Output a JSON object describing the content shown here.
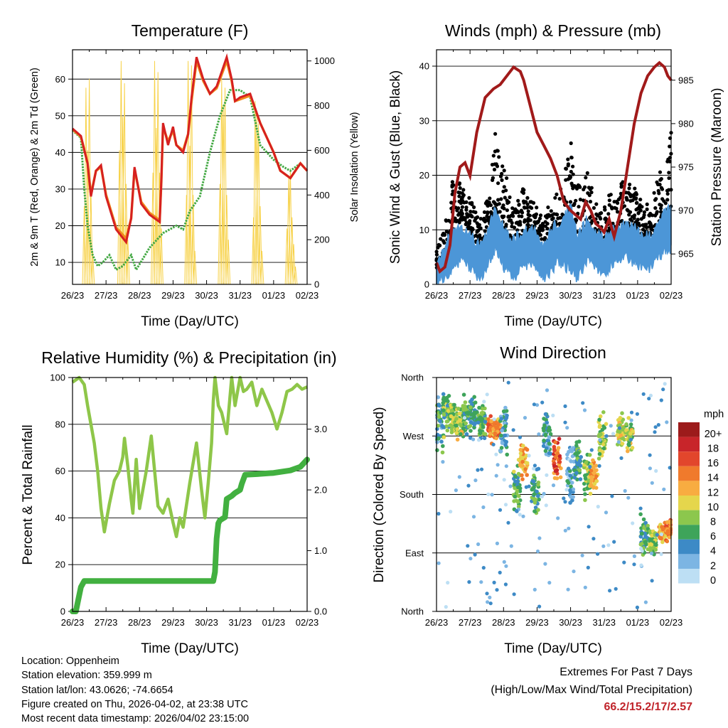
{
  "x_ticks": [
    "26/23",
    "27/23",
    "28/23",
    "29/23",
    "30/23",
    "31/23",
    "01/23",
    "02/23"
  ],
  "x_axis_label": "Time (Day/UTC)",
  "colors": {
    "temp_red": "#d62020",
    "temp_orange": "#f08a1c",
    "dewpoint_green": "#43a843",
    "solar_yellow": "#f7d24a",
    "gust_black": "#000000",
    "wind_blue": "#4c96d7",
    "pressure_maroon": "#a11a1a",
    "rh_lightgreen": "#8ec649",
    "rain_green": "#42b040"
  },
  "chart_data": [
    {
      "type": "line",
      "id": "temperature",
      "title": "Temperature (F)",
      "xlabel": "Time (Day/UTC)",
      "ylabel": "2m & 9m T (Red, Orange) & 2m Td (Green)",
      "ylabel_right": "Solar Insolation (Yellow)",
      "x_range": [
        0,
        7
      ],
      "ylim": [
        4,
        68
      ],
      "ylim_right": [
        0,
        1050
      ],
      "y_ticks": [
        10,
        20,
        30,
        40,
        50,
        60
      ],
      "y_ticks_right": [
        0,
        200,
        400,
        600,
        800,
        1000
      ],
      "series": [
        {
          "name": "2m T",
          "color": "red",
          "x": [
            0,
            0.25,
            0.45,
            0.55,
            0.7,
            0.85,
            1.0,
            1.3,
            1.6,
            1.75,
            1.85,
            2.05,
            2.3,
            2.6,
            2.65,
            2.7,
            2.85,
            3.0,
            3.1,
            3.3,
            3.45,
            3.55,
            3.7,
            3.9,
            4.1,
            4.3,
            4.6,
            4.75,
            4.85,
            5.0,
            5.3,
            5.6,
            6.0,
            6.2,
            6.5,
            6.8,
            7.0
          ],
          "y": [
            46.5,
            44.5,
            37,
            28,
            35,
            36.5,
            28,
            19,
            15.5,
            22,
            36,
            26,
            23,
            21,
            32,
            48,
            42,
            47,
            42,
            40,
            45,
            55,
            66,
            60,
            56,
            58,
            66,
            60,
            54,
            55,
            56,
            48,
            40,
            35,
            33,
            37,
            35
          ]
        },
        {
          "name": "9m T",
          "color": "orange",
          "x": [
            0,
            0.25,
            0.45,
            0.55,
            0.7,
            0.85,
            1.0,
            1.3,
            1.6,
            1.75,
            1.85,
            2.05,
            2.3,
            2.6,
            2.65,
            2.7,
            2.85,
            3.0,
            3.1,
            3.3,
            3.45,
            3.55,
            3.7,
            3.9,
            4.1,
            4.3,
            4.6,
            4.75,
            4.85,
            5.0,
            5.3,
            5.6,
            6.0,
            6.2,
            6.5,
            6.8,
            7.0
          ],
          "y": [
            46.3,
            44.3,
            37,
            28.5,
            35,
            36,
            28.5,
            19.5,
            16.5,
            22,
            35.5,
            26.5,
            23.5,
            21.5,
            32,
            47,
            43,
            46,
            42,
            40.5,
            45,
            54,
            65,
            59.5,
            56,
            57.5,
            65,
            59.5,
            54,
            54.5,
            55.5,
            48,
            40,
            35,
            33,
            37,
            35
          ]
        },
        {
          "name": "2m Td",
          "color": "dewpoint",
          "x": [
            0,
            0.25,
            0.35,
            0.45,
            0.6,
            0.75,
            0.9,
            1.1,
            1.3,
            1.5,
            1.75,
            1.9,
            2.1,
            2.3,
            2.5,
            2.7,
            2.9,
            3.1,
            3.3,
            3.5,
            3.8,
            4.1,
            4.4,
            4.7,
            5.0,
            5.3,
            5.6,
            6.0,
            6.3,
            6.5,
            6.8,
            7.0
          ],
          "y": [
            46,
            44,
            30,
            20,
            12,
            9,
            10,
            12,
            8,
            9,
            12,
            8,
            11,
            14,
            16,
            18,
            19,
            20,
            19,
            24,
            28,
            40,
            50,
            57,
            57,
            55,
            42,
            38,
            36,
            35,
            37,
            35
          ]
        }
      ],
      "solar": {
        "name": "Solar Insolation",
        "x": [
          0.35,
          0.4,
          0.45,
          0.5,
          0.55,
          0.6,
          1.4,
          1.45,
          1.5,
          1.55,
          1.6,
          1.65,
          2.4,
          2.45,
          2.5,
          2.55,
          2.6,
          2.65,
          3.4,
          3.45,
          3.5,
          3.55,
          3.6,
          3.65,
          4.4,
          4.45,
          4.5,
          4.55,
          4.6,
          4.65,
          5.4,
          5.45,
          5.5,
          5.55,
          5.6,
          5.65,
          6.4,
          6.45,
          6.5,
          6.55,
          6.6,
          6.65
        ],
        "values": [
          350,
          880,
          600,
          920,
          420,
          150,
          600,
          1000,
          750,
          900,
          450,
          200,
          500,
          1000,
          700,
          950,
          500,
          250,
          400,
          1000,
          620,
          980,
          400,
          150,
          450,
          920,
          800,
          880,
          400,
          200,
          300,
          820,
          760,
          720,
          350,
          150,
          250,
          480,
          520,
          300,
          180,
          80
        ]
      }
    },
    {
      "type": "scatter",
      "id": "winds",
      "title": "Winds (mph) & Pressure (mb)",
      "xlabel": "Time (Day/UTC)",
      "ylabel": "Sonic Wind & Gust (Blue, Black)",
      "ylabel_right": "Station Pressure (Maroon)",
      "x_range": [
        0,
        7
      ],
      "ylim": [
        0,
        43
      ],
      "ylim_right": [
        961.5,
        988.5
      ],
      "y_ticks": [
        0,
        10,
        20,
        30,
        40
      ],
      "y_ticks_right": [
        965,
        970,
        975,
        980,
        985
      ],
      "gust_envelope": {
        "x": [
          0,
          0.2,
          0.5,
          0.8,
          1.0,
          1.3,
          1.6,
          1.75,
          2.0,
          2.3,
          2.6,
          2.9,
          3.2,
          3.5,
          3.7,
          4.0,
          4.2,
          4.5,
          4.8,
          5.0,
          5.3,
          5.6,
          5.9,
          6.1,
          6.4,
          6.6,
          6.8,
          7.0
        ],
        "low": [
          3,
          4,
          10,
          12,
          9,
          6,
          10,
          14,
          9,
          5,
          8,
          10,
          4,
          7,
          10,
          6,
          4,
          8,
          6,
          6,
          8,
          10,
          9,
          8,
          7,
          9,
          11,
          12
        ],
        "high": [
          7,
          10,
          20,
          18,
          16,
          12,
          19,
          28,
          22,
          14,
          18,
          15,
          12,
          17,
          18,
          27,
          18,
          21,
          14,
          16,
          17,
          20,
          18,
          16,
          14,
          20,
          22,
          28
        ]
      },
      "wind_envelope": {
        "x": [
          0,
          0.2,
          0.5,
          0.8,
          1.0,
          1.3,
          1.6,
          1.75,
          2.0,
          2.3,
          2.6,
          2.9,
          3.2,
          3.5,
          3.7,
          4.0,
          4.2,
          4.5,
          4.8,
          5.0,
          5.3,
          5.6,
          5.9,
          6.1,
          6.4,
          6.6,
          6.8,
          7.0
        ],
        "low": [
          0,
          0,
          2,
          4,
          2,
          0,
          3,
          5,
          2,
          0,
          2,
          3,
          0,
          2,
          3,
          1,
          0,
          3,
          2,
          1,
          3,
          4,
          3,
          2,
          2,
          4,
          5,
          5
        ],
        "high": [
          4,
          7,
          12,
          11,
          10,
          8,
          12,
          15,
          12,
          9,
          11,
          11,
          8,
          12,
          13,
          15,
          10,
          13,
          10,
          10,
          11,
          12,
          12,
          10,
          10,
          12,
          14,
          15
        ]
      },
      "pressure": {
        "name": "Station Pressure",
        "x": [
          0,
          0.1,
          0.25,
          0.4,
          0.55,
          0.7,
          0.85,
          1.0,
          1.2,
          1.45,
          1.7,
          1.9,
          2.1,
          2.3,
          2.5,
          2.6,
          2.8,
          3.0,
          3.2,
          3.4,
          3.6,
          3.8,
          4.0,
          4.15,
          4.3,
          4.45,
          4.6,
          4.75,
          4.9,
          5.0,
          5.15,
          5.3,
          5.5,
          5.7,
          5.9,
          6.1,
          6.3,
          6.5,
          6.65,
          6.8,
          6.9,
          7.0
        ],
        "values": [
          964,
          963,
          963.5,
          966,
          972,
          975,
          975.5,
          974,
          979,
          983,
          984,
          984.5,
          985.5,
          986.5,
          986,
          985,
          982,
          979,
          977.5,
          976,
          974,
          971,
          970,
          969.5,
          969,
          971,
          970,
          968.5,
          968,
          967.5,
          969,
          967,
          970,
          975,
          980,
          983.5,
          985.5,
          986.5,
          987,
          986.5,
          985.5,
          985
        ]
      }
    },
    {
      "type": "line",
      "id": "humidity",
      "title": "Relative Humidity (%) & Precipitation (in)",
      "xlabel": "Time (Day/UTC)",
      "ylabel": "Percent & Total Rainfall",
      "x_range": [
        0,
        7
      ],
      "ylim": [
        0,
        100
      ],
      "ylim_right": [
        0,
        3.85
      ],
      "y_ticks": [
        0,
        20,
        40,
        60,
        80,
        100
      ],
      "y_ticks_right": [
        "0.0",
        "1.0",
        "2.0",
        "3.0"
      ],
      "series": [
        {
          "name": "Relative Humidity",
          "x": [
            0,
            0.2,
            0.35,
            0.45,
            0.55,
            0.65,
            0.75,
            0.85,
            0.95,
            1.1,
            1.25,
            1.4,
            1.5,
            1.55,
            1.65,
            1.75,
            1.8,
            1.9,
            2.0,
            2.1,
            2.2,
            2.35,
            2.45,
            2.55,
            2.7,
            2.85,
            3.0,
            3.1,
            3.2,
            3.3,
            3.5,
            3.7,
            3.85,
            3.95,
            4.05,
            4.15,
            4.2,
            4.25,
            4.35,
            4.45,
            4.6,
            4.75,
            4.85,
            5.0,
            5.1,
            5.2,
            5.35,
            5.5,
            5.65,
            5.8,
            5.95,
            6.1,
            6.25,
            6.4,
            6.55,
            6.7,
            6.85,
            7.0
          ],
          "y": [
            98,
            100,
            97,
            88,
            80,
            72,
            60,
            44,
            34,
            46,
            56,
            60,
            66,
            74,
            62,
            48,
            42,
            65,
            44,
            52,
            60,
            75,
            60,
            45,
            42,
            48,
            38,
            32,
            40,
            36,
            55,
            72,
            52,
            40,
            55,
            72,
            90,
            100,
            88,
            85,
            76,
            100,
            88,
            100,
            94,
            95,
            98,
            88,
            95,
            90,
            85,
            78,
            85,
            94,
            95,
            97,
            95,
            96
          ]
        },
        {
          "name": "Total Precipitation",
          "x": [
            0,
            0.1,
            0.25,
            0.35,
            1.0,
            2.0,
            3.0,
            4.0,
            4.2,
            4.25,
            4.3,
            4.35,
            4.4,
            4.55,
            4.6,
            4.75,
            4.85,
            5.0,
            5.05,
            5.15,
            5.5,
            6.0,
            6.5,
            6.8,
            7.0
          ],
          "values": [
            0.0,
            0.0,
            0.4,
            0.5,
            0.5,
            0.5,
            0.5,
            0.5,
            0.5,
            0.65,
            1.2,
            1.45,
            1.5,
            1.55,
            1.85,
            1.9,
            1.95,
            2.0,
            2.1,
            2.25,
            2.26,
            2.28,
            2.32,
            2.38,
            2.5
          ]
        }
      ]
    },
    {
      "type": "scatter",
      "id": "wind_direction",
      "title": "Wind Direction",
      "xlabel": "Time (Day/UTC)",
      "ylabel": "Direction (Colored By Speed)",
      "x_range": [
        0,
        7
      ],
      "ylim": [
        0,
        360
      ],
      "y_ticks": [
        "North",
        "East",
        "South",
        "West",
        "North"
      ],
      "y_tick_values": [
        0,
        90,
        180,
        270,
        360
      ],
      "legend_title": "mph",
      "legend_labels": [
        "20+",
        "18",
        "16",
        "14",
        "12",
        "10",
        "8",
        "6",
        "4",
        "2",
        "0"
      ],
      "legend_colors": [
        "#9c1b1b",
        "#c8252a",
        "#e2462c",
        "#f07a2c",
        "#f8ac41",
        "#e5d64c",
        "#8cc74d",
        "#3ea45a",
        "#3d8ac6",
        "#7cb5e3",
        "#bddff4"
      ],
      "clusters": [
        {
          "x": 0.1,
          "dir": 290,
          "spread": 40,
          "speed": 5
        },
        {
          "x": 0.3,
          "dir": 305,
          "spread": 30,
          "speed": 7
        },
        {
          "x": 0.5,
          "dir": 300,
          "spread": 25,
          "speed": 8
        },
        {
          "x": 0.7,
          "dir": 290,
          "spread": 25,
          "speed": 9
        },
        {
          "x": 0.9,
          "dir": 305,
          "spread": 30,
          "speed": 6
        },
        {
          "x": 1.1,
          "dir": 300,
          "spread": 30,
          "speed": 5
        },
        {
          "x": 1.35,
          "dir": 295,
          "spread": 25,
          "speed": 6
        },
        {
          "x": 1.65,
          "dir": 282,
          "spread": 18,
          "speed": 14
        },
        {
          "x": 1.8,
          "dir": 280,
          "spread": 15,
          "speed": 13
        },
        {
          "x": 2.0,
          "dir": 275,
          "spread": 35,
          "speed": 4
        },
        {
          "x": 2.4,
          "dir": 190,
          "spread": 30,
          "speed": 7
        },
        {
          "x": 2.6,
          "dir": 235,
          "spread": 25,
          "speed": 12
        },
        {
          "x": 2.95,
          "dir": 185,
          "spread": 30,
          "speed": 6
        },
        {
          "x": 3.3,
          "dir": 270,
          "spread": 30,
          "speed": 4
        },
        {
          "x": 3.6,
          "dir": 235,
          "spread": 25,
          "speed": 15
        },
        {
          "x": 4.0,
          "dir": 200,
          "spread": 50,
          "speed": 3
        },
        {
          "x": 4.2,
          "dir": 230,
          "spread": 35,
          "speed": 6
        },
        {
          "x": 4.5,
          "dir": 210,
          "spread": 30,
          "speed": 8
        },
        {
          "x": 4.7,
          "dir": 210,
          "spread": 25,
          "speed": 12
        },
        {
          "x": 4.95,
          "dir": 270,
          "spread": 30,
          "speed": 8
        },
        {
          "x": 5.5,
          "dir": 280,
          "spread": 25,
          "speed": 10
        },
        {
          "x": 5.75,
          "dir": 270,
          "spread": 22,
          "speed": 9
        },
        {
          "x": 6.2,
          "dir": 115,
          "spread": 25,
          "speed": 6
        },
        {
          "x": 6.45,
          "dir": 105,
          "spread": 20,
          "speed": 8
        },
        {
          "x": 6.75,
          "dir": 120,
          "spread": 15,
          "speed": 12
        },
        {
          "x": 6.95,
          "dir": 125,
          "spread": 12,
          "speed": 14
        }
      ]
    }
  ],
  "station": {
    "location": "Location: Oppenheim",
    "elevation": "Station elevation: 359.999 m",
    "latlon": "Station lat/lon: 43.0626; -74.6654",
    "created": "Figure created on Thu, 2026-04-02, at 23:38 UTC",
    "latest": "Most recent data timestamp: 2026/04/02 23:15:00"
  },
  "extremes": {
    "title": "Extremes For Past 7 Days",
    "subtitle": "(High/Low/Max Wind/Total Precipitation)",
    "values": "66.2/15.2/17/2.57"
  }
}
